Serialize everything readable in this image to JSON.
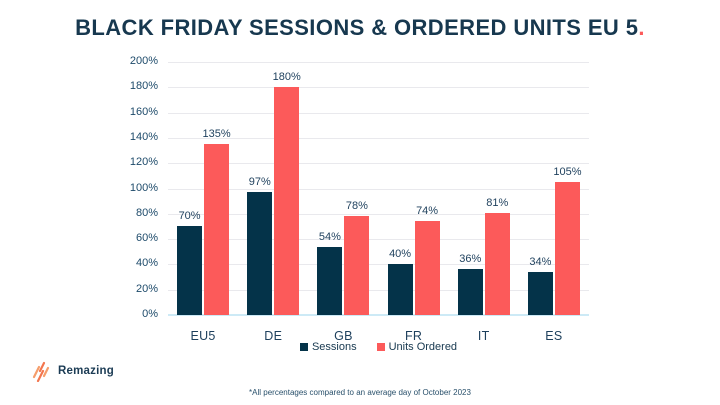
{
  "title": {
    "text": "BLACK FRIDAY SESSIONS & ORDERED UNITS EU 5",
    "accent_period": "."
  },
  "chart_data": {
    "type": "bar",
    "title": "BLACK FRIDAY SESSIONS & ORDERED UNITS EU 5.",
    "categories": [
      "EU5",
      "DE",
      "GB",
      "FR",
      "IT",
      "ES"
    ],
    "series": [
      {
        "name": "Sessions",
        "color": "#043349",
        "values": [
          70,
          97,
          54,
          40,
          36,
          34
        ]
      },
      {
        "name": "Units Ordered",
        "color": "#fc5a5a",
        "values": [
          135,
          180,
          78,
          74,
          81,
          105
        ]
      }
    ],
    "value_suffix": "%",
    "xlabel": "",
    "ylabel": "",
    "ylim": [
      0,
      200
    ],
    "y_tick_step": 20,
    "y_tick_suffix": "%",
    "grid": true,
    "data_labels": true,
    "legend_position": "bottom"
  },
  "footnote": "*All percentages compared to an average day of October 2023",
  "logo": {
    "text": "Remazing",
    "icon": "diagonal-stripes-icon",
    "icon_color": "#f3764e"
  },
  "colors": {
    "background": "#ffffff",
    "title": "#17384f",
    "accent": "#fc5a5a",
    "sessions_bar": "#043349",
    "units_ordered_bar": "#fc5a5a",
    "axis_text": "#1d4a6a",
    "gridline": "#e9e9ed",
    "baseline": "#cdeaf6"
  }
}
